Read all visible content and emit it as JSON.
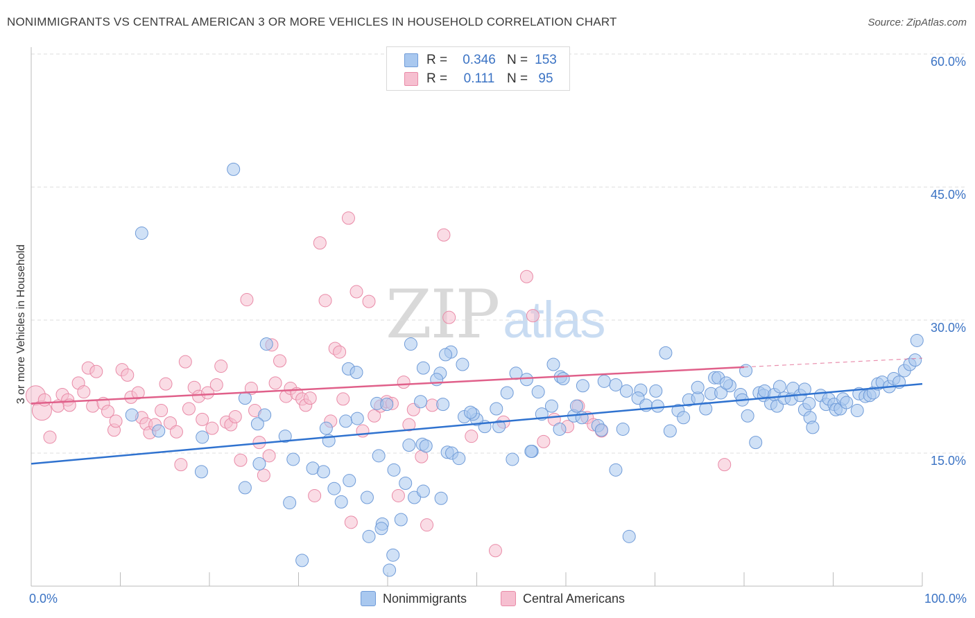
{
  "header": {
    "title": "NONIMMIGRANTS VS CENTRAL AMERICAN 3 OR MORE VEHICLES IN HOUSEHOLD CORRELATION CHART",
    "source": "Source: ZipAtlas.com"
  },
  "watermark": {
    "zip": "ZIP",
    "atlas": "atlas"
  },
  "legend_top": {
    "rows": [
      {
        "r_label": "R =",
        "r_value": "0.346",
        "n_label": "N =",
        "n_value": "153"
      },
      {
        "r_label": "R =",
        "r_value": "0.111",
        "n_label": "N =",
        "n_value": "95"
      }
    ]
  },
  "colors": {
    "blue_fill": "#a9c8ef",
    "blue_stroke": "#6f9bd8",
    "blue_line": "#2f72cf",
    "pink_fill": "#f6bfd0",
    "pink_stroke": "#e98aa7",
    "pink_line": "#e0608a",
    "grid": "#dddddd",
    "axis_text": "#3b73c4"
  },
  "chart_data": {
    "type": "scatter",
    "ylabel": "3 or more Vehicles in Household",
    "xlim": [
      0,
      100
    ],
    "ylim": [
      0,
      60
    ],
    "x_tick_labels": [
      "0.0%",
      "100.0%"
    ],
    "y_ticks": [
      15,
      30,
      45,
      60
    ],
    "y_tick_labels": [
      "15.0%",
      "30.0%",
      "45.0%",
      "60.0%"
    ],
    "grid": "horizontal dashed",
    "legend_position": "bottom-center",
    "series": [
      {
        "name": "Nonimmigrants",
        "color": "#a9c8ef",
        "trend": {
          "x": [
            0,
            100
          ],
          "y": [
            13.8,
            22.8
          ]
        },
        "points": [
          [
            22.7,
            47
          ],
          [
            12.4,
            39.8
          ],
          [
            26.4,
            27.3
          ],
          [
            26.2,
            19.3
          ],
          [
            25.4,
            18.3
          ],
          [
            24.0,
            21.2
          ],
          [
            19.2,
            16.8
          ],
          [
            14.3,
            17.5
          ],
          [
            11.3,
            19.3
          ],
          [
            19.1,
            12.9
          ],
          [
            24.0,
            11.1
          ],
          [
            25.6,
            13.8
          ],
          [
            28.5,
            16.9
          ],
          [
            29.4,
            14.3
          ],
          [
            31.6,
            13.3
          ],
          [
            32.8,
            12.9
          ],
          [
            33.4,
            16.4
          ],
          [
            34.0,
            11.0
          ],
          [
            35.7,
            11.9
          ],
          [
            34.8,
            9.5
          ],
          [
            37.7,
            10.0
          ],
          [
            29.0,
            9.4
          ],
          [
            37.9,
            5.6
          ],
          [
            39.4,
            7.0
          ],
          [
            41.5,
            7.5
          ],
          [
            39.3,
            6.5
          ],
          [
            40.6,
            3.5
          ],
          [
            40.2,
            1.8
          ],
          [
            30.4,
            2.9
          ],
          [
            40.7,
            13.1
          ],
          [
            39.0,
            14.7
          ],
          [
            42.0,
            11.6
          ],
          [
            43.0,
            10.0
          ],
          [
            44.0,
            10.7
          ],
          [
            46.0,
            9.9
          ],
          [
            42.4,
            15.9
          ],
          [
            43.9,
            16.0
          ],
          [
            44.3,
            15.8
          ],
          [
            46.7,
            15.1
          ],
          [
            47.2,
            15.0
          ],
          [
            48.0,
            14.4
          ],
          [
            48.6,
            19.1
          ],
          [
            50.9,
            18.0
          ],
          [
            52.5,
            18.0
          ],
          [
            54.0,
            14.3
          ],
          [
            56.2,
            15.2
          ],
          [
            57.3,
            19.4
          ],
          [
            59.3,
            17.7
          ],
          [
            60.9,
            19.2
          ],
          [
            61.8,
            19.0
          ],
          [
            63.6,
            18.1
          ],
          [
            64.0,
            17.6
          ],
          [
            61.2,
            20.3
          ],
          [
            58.4,
            20.3
          ],
          [
            56.9,
            21.9
          ],
          [
            53.4,
            21.8
          ],
          [
            52.2,
            20.0
          ],
          [
            50.0,
            18.8
          ],
          [
            49.6,
            19.4
          ],
          [
            46.2,
            20.5
          ],
          [
            43.7,
            20.8
          ],
          [
            38.8,
            20.6
          ],
          [
            35.3,
            18.6
          ],
          [
            36.6,
            18.9
          ],
          [
            35.6,
            24.5
          ],
          [
            36.5,
            24.1
          ],
          [
            45.9,
            24.0
          ],
          [
            48.4,
            25.0
          ],
          [
            44.0,
            24.6
          ],
          [
            42.6,
            27.3
          ],
          [
            47.1,
            26.4
          ],
          [
            46.5,
            26.1
          ],
          [
            54.4,
            24.0
          ],
          [
            55.6,
            23.3
          ],
          [
            58.6,
            25.0
          ],
          [
            59.4,
            23.6
          ],
          [
            59.7,
            23.4
          ],
          [
            61.9,
            22.6
          ],
          [
            64.3,
            23.1
          ],
          [
            65.6,
            22.7
          ],
          [
            66.8,
            22.0
          ],
          [
            68.4,
            22.1
          ],
          [
            68.1,
            21.2
          ],
          [
            69.0,
            20.4
          ],
          [
            70.1,
            22.0
          ],
          [
            71.2,
            26.3
          ],
          [
            72.6,
            19.8
          ],
          [
            71.7,
            17.5
          ],
          [
            73.2,
            19.0
          ],
          [
            73.8,
            21.0
          ],
          [
            74.8,
            21.2
          ],
          [
            75.7,
            20.0
          ],
          [
            76.3,
            21.7
          ],
          [
            74.8,
            22.4
          ],
          [
            76.7,
            23.5
          ],
          [
            77.1,
            23.5
          ],
          [
            78.4,
            22.6
          ],
          [
            77.4,
            21.8
          ],
          [
            79.6,
            21.6
          ],
          [
            79.8,
            21.0
          ],
          [
            80.4,
            19.2
          ],
          [
            81.3,
            16.2
          ],
          [
            81.7,
            21.8
          ],
          [
            82.2,
            21.5
          ],
          [
            82.3,
            22.0
          ],
          [
            83.0,
            20.6
          ],
          [
            83.4,
            21.6
          ],
          [
            83.7,
            20.3
          ],
          [
            84.0,
            22.5
          ],
          [
            84.5,
            21.2
          ],
          [
            85.3,
            21.1
          ],
          [
            85.5,
            22.3
          ],
          [
            86.3,
            21.5
          ],
          [
            86.8,
            19.9
          ],
          [
            87.3,
            20.6
          ],
          [
            87.4,
            19.0
          ],
          [
            87.7,
            17.9
          ],
          [
            88.6,
            21.5
          ],
          [
            89.2,
            20.5
          ],
          [
            89.5,
            21.1
          ],
          [
            90.1,
            20.5
          ],
          [
            90.3,
            19.9
          ],
          [
            90.8,
            20.0
          ],
          [
            91.1,
            21.1
          ],
          [
            91.5,
            20.7
          ],
          [
            92.7,
            19.8
          ],
          [
            92.9,
            21.7
          ],
          [
            93.6,
            21.4
          ],
          [
            94.1,
            21.5
          ],
          [
            94.5,
            21.8
          ],
          [
            95.0,
            22.8
          ],
          [
            95.5,
            23.0
          ],
          [
            96.3,
            22.5
          ],
          [
            96.8,
            23.4
          ],
          [
            97.4,
            23.0
          ],
          [
            98.0,
            24.3
          ],
          [
            98.6,
            25.0
          ],
          [
            99.2,
            25.5
          ],
          [
            99.4,
            27.7
          ],
          [
            67.1,
            5.6
          ],
          [
            65.6,
            13.1
          ],
          [
            56.1,
            15.2
          ],
          [
            39.9,
            20.5
          ],
          [
            33.1,
            17.8
          ],
          [
            45.5,
            23.3
          ],
          [
            49.3,
            19.6
          ],
          [
            66.4,
            17.7
          ],
          [
            78.0,
            22.9
          ],
          [
            80.2,
            24.3
          ],
          [
            86.8,
            22.2
          ],
          [
            70.3,
            20.3
          ]
        ]
      },
      {
        "name": "Central Americans",
        "color": "#f6bfd0",
        "trend": {
          "x": [
            0,
            80
          ],
          "y": [
            20.6,
            24.7
          ]
        },
        "trend_dashed": {
          "x": [
            80,
            100
          ],
          "y": [
            24.7,
            25.7
          ]
        },
        "points": [
          [
            0.5,
            21.5
          ],
          [
            1.2,
            19.8
          ],
          [
            1.5,
            21.0
          ],
          [
            2.1,
            16.8
          ],
          [
            3.0,
            20.3
          ],
          [
            3.5,
            21.6
          ],
          [
            4.1,
            21.0
          ],
          [
            4.3,
            20.4
          ],
          [
            5.3,
            22.9
          ],
          [
            5.9,
            21.9
          ],
          [
            6.4,
            24.6
          ],
          [
            6.9,
            20.3
          ],
          [
            7.3,
            24.2
          ],
          [
            8.1,
            20.6
          ],
          [
            8.6,
            19.7
          ],
          [
            9.3,
            17.6
          ],
          [
            9.5,
            18.6
          ],
          [
            10.2,
            24.4
          ],
          [
            10.8,
            23.8
          ],
          [
            11.2,
            21.3
          ],
          [
            12.0,
            21.8
          ],
          [
            12.4,
            19.0
          ],
          [
            12.9,
            18.3
          ],
          [
            13.3,
            17.3
          ],
          [
            13.9,
            18.2
          ],
          [
            14.6,
            19.8
          ],
          [
            15.1,
            22.8
          ],
          [
            15.6,
            18.4
          ],
          [
            16.3,
            17.4
          ],
          [
            16.8,
            13.7
          ],
          [
            17.3,
            25.3
          ],
          [
            17.7,
            20.0
          ],
          [
            18.3,
            22.4
          ],
          [
            18.8,
            21.4
          ],
          [
            19.2,
            18.8
          ],
          [
            19.8,
            21.8
          ],
          [
            20.3,
            17.8
          ],
          [
            20.8,
            22.7
          ],
          [
            21.3,
            24.8
          ],
          [
            21.9,
            18.5
          ],
          [
            22.4,
            18.2
          ],
          [
            22.9,
            19.1
          ],
          [
            23.5,
            14.2
          ],
          [
            24.2,
            32.3
          ],
          [
            24.7,
            22.3
          ],
          [
            25.1,
            19.8
          ],
          [
            25.6,
            16.2
          ],
          [
            26.1,
            12.5
          ],
          [
            26.7,
            14.7
          ],
          [
            27.0,
            27.2
          ],
          [
            27.4,
            22.9
          ],
          [
            27.9,
            25.4
          ],
          [
            28.6,
            21.4
          ],
          [
            29.1,
            22.3
          ],
          [
            29.8,
            21.7
          ],
          [
            30.4,
            21.1
          ],
          [
            30.8,
            20.4
          ],
          [
            31.3,
            21.2
          ],
          [
            31.8,
            10.2
          ],
          [
            32.4,
            38.7
          ],
          [
            33.0,
            32.2
          ],
          [
            33.6,
            18.6
          ],
          [
            34.1,
            26.8
          ],
          [
            34.6,
            26.4
          ],
          [
            35.0,
            21.1
          ],
          [
            35.6,
            41.5
          ],
          [
            35.9,
            7.2
          ],
          [
            36.5,
            33.2
          ],
          [
            37.2,
            17.5
          ],
          [
            37.9,
            32.1
          ],
          [
            38.5,
            19.2
          ],
          [
            39.2,
            20.3
          ],
          [
            39.9,
            20.8
          ],
          [
            40.5,
            20.6
          ],
          [
            41.2,
            10.2
          ],
          [
            41.8,
            23.0
          ],
          [
            42.4,
            18.2
          ],
          [
            42.9,
            19.9
          ],
          [
            43.8,
            14.6
          ],
          [
            44.4,
            6.9
          ],
          [
            45.0,
            20.4
          ],
          [
            46.9,
            30.3
          ],
          [
            52.1,
            4.0
          ],
          [
            55.6,
            34.9
          ],
          [
            56.3,
            30.5
          ],
          [
            58.7,
            18.8
          ],
          [
            61.4,
            20.3
          ],
          [
            62.4,
            19.0
          ],
          [
            63.1,
            18.2
          ],
          [
            64.0,
            17.5
          ],
          [
            77.8,
            13.7
          ],
          [
            46.3,
            39.6
          ],
          [
            49.4,
            16.9
          ],
          [
            53.0,
            18.5
          ],
          [
            57.5,
            16.3
          ],
          [
            60.2,
            18.0
          ]
        ]
      }
    ]
  },
  "bottom_legend": [
    "Nonimmigrants",
    "Central Americans"
  ]
}
